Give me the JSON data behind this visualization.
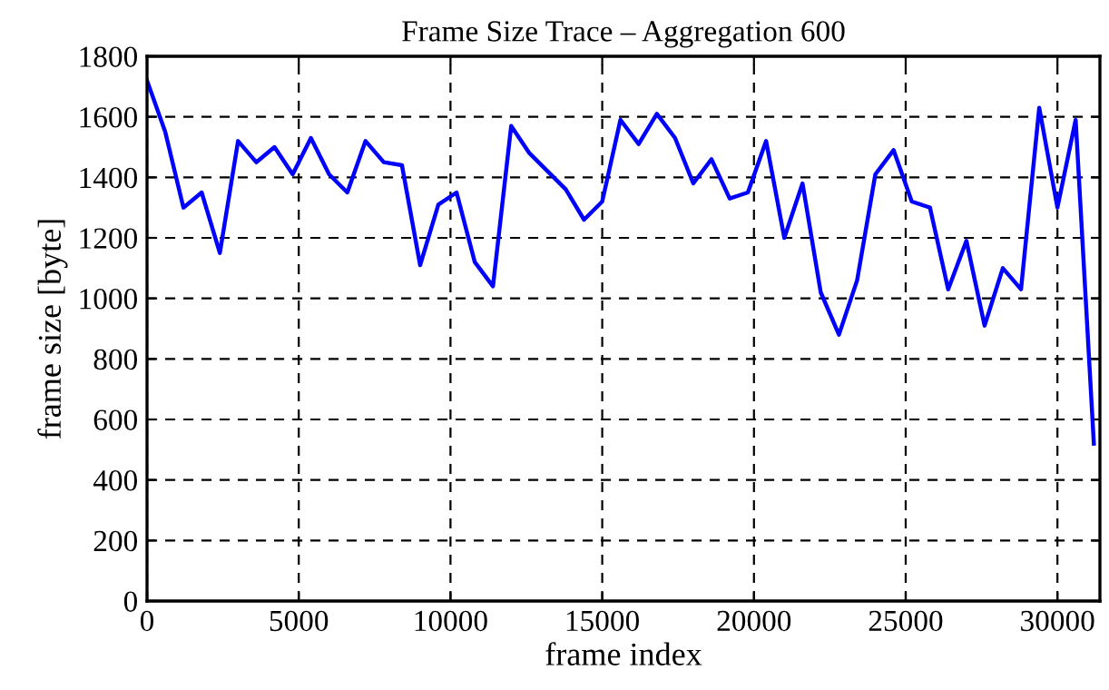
{
  "chart_data": {
    "type": "line",
    "title": "Frame Size Trace – Aggregation 600",
    "xlabel": "frame index",
    "ylabel": "frame size [byte]",
    "x": [
      0,
      600,
      1200,
      1800,
      2400,
      3000,
      3600,
      4200,
      4800,
      5400,
      6000,
      6600,
      7200,
      7800,
      8400,
      9000,
      9600,
      10200,
      10800,
      11400,
      12000,
      12600,
      13200,
      13800,
      14400,
      15000,
      15600,
      16200,
      16800,
      17400,
      18000,
      18600,
      19200,
      19800,
      20400,
      21000,
      21600,
      22200,
      22800,
      23400,
      24000,
      24600,
      25200,
      25800,
      26400,
      27000,
      27600,
      28200,
      28800,
      29400,
      30000,
      30600,
      31200
    ],
    "series": [
      {
        "color": "#0000ff",
        "values": [
          1720,
          1550,
          1300,
          1350,
          1150,
          1520,
          1450,
          1500,
          1410,
          1530,
          1410,
          1350,
          1520,
          1450,
          1440,
          1110,
          1310,
          1350,
          1120,
          1040,
          1570,
          1480,
          1420,
          1360,
          1260,
          1320,
          1590,
          1510,
          1610,
          1530,
          1380,
          1460,
          1330,
          1350,
          1520,
          1200,
          1380,
          1020,
          880,
          1060,
          1410,
          1490,
          1320,
          1300,
          1030,
          1190,
          910,
          1100,
          1030,
          1630,
          1300,
          1590,
          520
        ]
      }
    ],
    "xlim": [
      0,
      31400
    ],
    "xticks": [
      0,
      5000,
      10000,
      15000,
      20000,
      25000,
      30000
    ],
    "ylim": [
      0,
      1800
    ],
    "yticks": [
      0,
      200,
      400,
      600,
      800,
      1000,
      1200,
      1400,
      1600,
      1800
    ],
    "grid": true,
    "line_style": "solid"
  }
}
